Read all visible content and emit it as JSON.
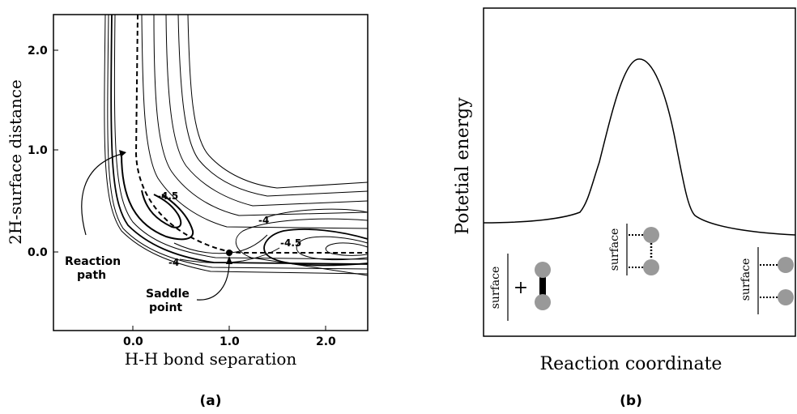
{
  "panel_a": {
    "caption": "(a)",
    "xlabel": "H-H bond separation",
    "ylabel": "2H-surface distance",
    "x_ticks": [
      "0.0",
      "1.0",
      "2.0"
    ],
    "y_ticks": [
      "2.0",
      "1.0",
      "0.0"
    ],
    "contour_labels": [
      "-4.5",
      "-4",
      "-4",
      "-4.5"
    ],
    "annotations": {
      "reaction_path": [
        "Reaction",
        "path"
      ],
      "saddle_point": [
        "Saddle",
        "point"
      ]
    }
  },
  "panel_b": {
    "caption": "(b)",
    "xlabel": "Reaction coordinate",
    "ylabel": "Potetial energy",
    "surface_label": "surface",
    "plus_sign": "+"
  },
  "colors": {
    "atom": "#999999",
    "line": "#000000"
  }
}
